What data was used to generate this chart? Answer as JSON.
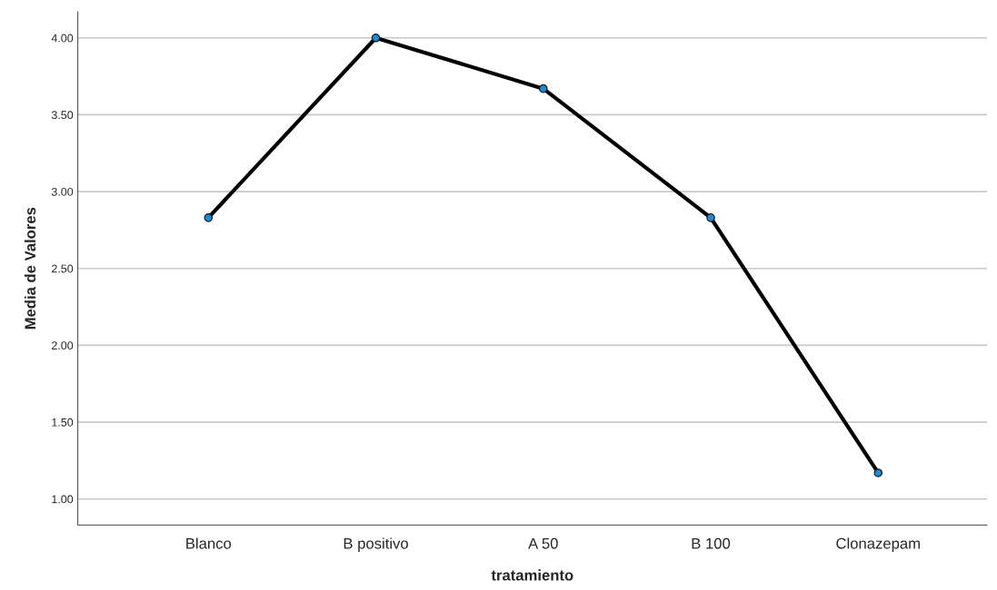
{
  "chart_data": {
    "type": "line",
    "xlabel": "tratamiento",
    "ylabel": "Media de Valores",
    "categories": [
      "Blanco",
      "B positivo",
      "A 50",
      "B 100",
      "Clonazepam"
    ],
    "series": [
      {
        "color": "#000000",
        "values": [
          2.83,
          4.0,
          3.67,
          2.83,
          1.17
        ]
      }
    ],
    "marker": "circle",
    "line_style": "solid",
    "grid": "y",
    "legend": false,
    "ylim": [
      0.83,
      4.17
    ],
    "yticks": [
      {
        "value": 1,
        "label": "1.00"
      },
      {
        "value": 1.5,
        "label": "1.50"
      },
      {
        "value": 2,
        "label": "2.00"
      },
      {
        "value": 2.5,
        "label": "2.50"
      },
      {
        "value": 3,
        "label": "3.00"
      },
      {
        "value": 3.5,
        "label": "3.50"
      },
      {
        "value": 4,
        "label": "4.00"
      }
    ]
  }
}
